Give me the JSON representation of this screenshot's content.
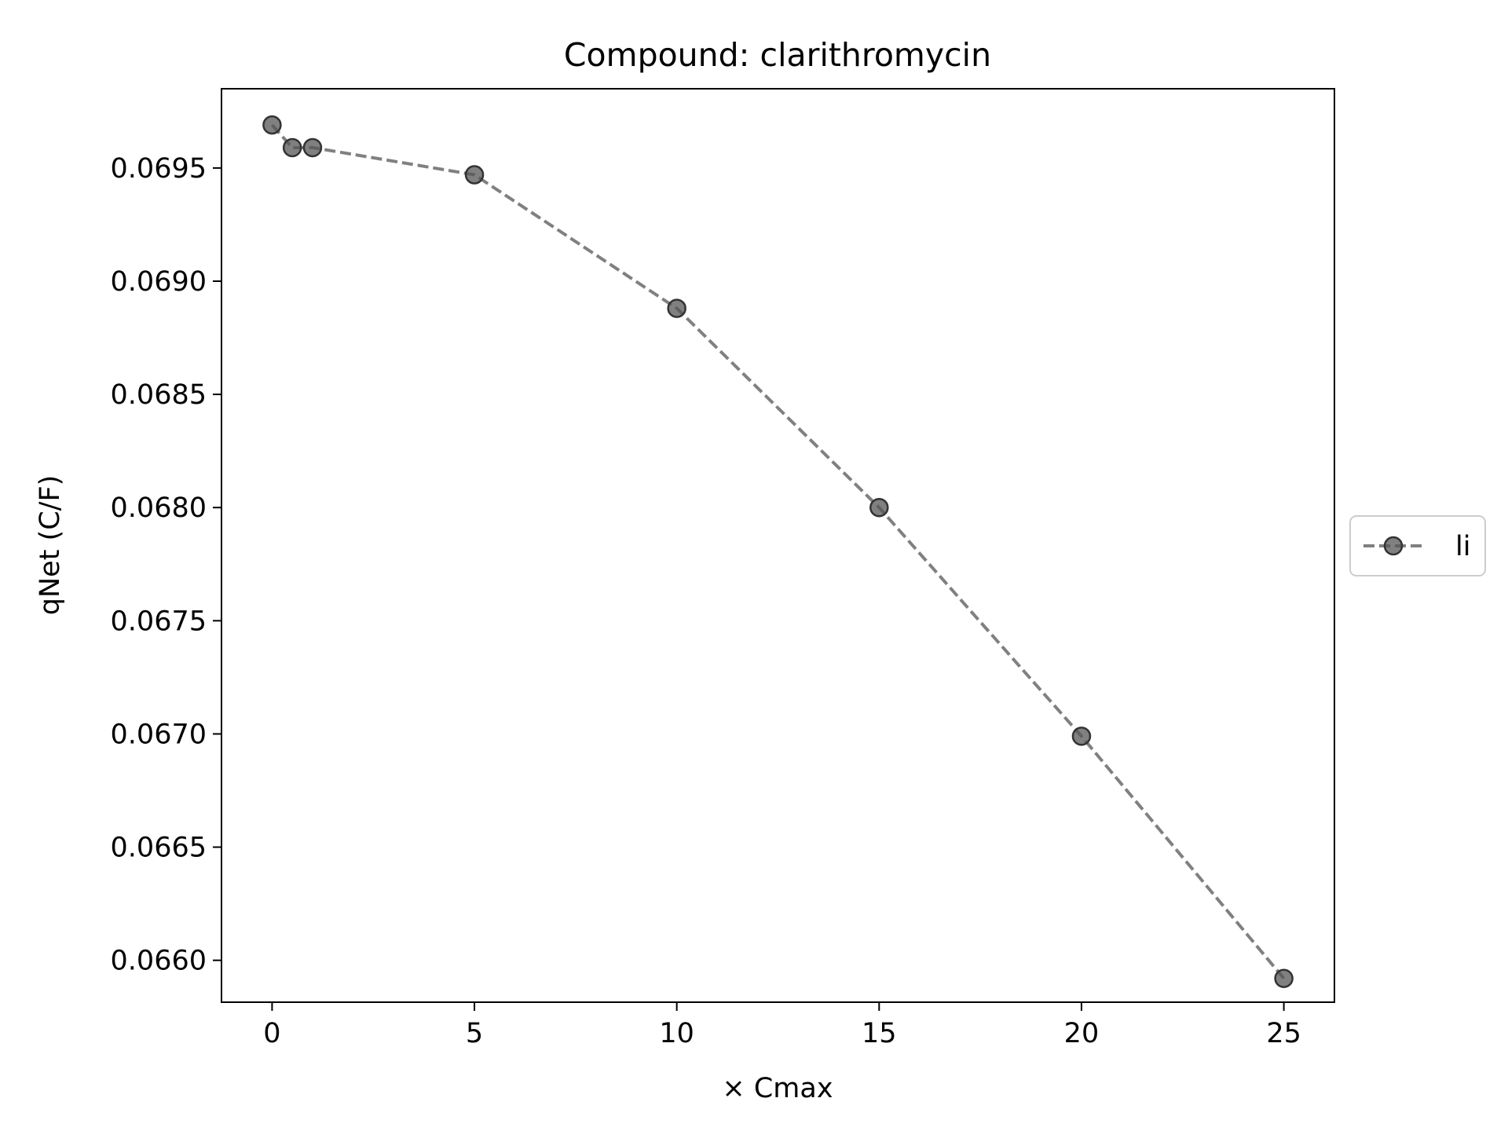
{
  "chart_data": {
    "type": "line",
    "title": "Compound: clarithromycin",
    "xlabel": "× Cmax",
    "ylabel": "qNet (C/F)",
    "xlim": [
      -1.25,
      26.25
    ],
    "ylim": [
      0.065815,
      0.06985
    ],
    "x_ticks": [
      0,
      5,
      10,
      15,
      20,
      25
    ],
    "y_ticks": [
      0.066,
      0.0665,
      0.067,
      0.0675,
      0.068,
      0.0685,
      0.069,
      0.0695
    ],
    "x_tick_labels": [
      "0",
      "5",
      "10",
      "15",
      "20",
      "25"
    ],
    "y_tick_labels": [
      "0.0660",
      "0.0665",
      "0.0670",
      "0.0675",
      "0.0680",
      "0.0685",
      "0.0690",
      "0.0695"
    ],
    "grid": false,
    "legend_position": "center right, outside plot",
    "series": [
      {
        "name": "li",
        "color": "#555555",
        "line_style": "dashed",
        "marker": "circle",
        "x": [
          0,
          0.5,
          1,
          5,
          10,
          15,
          20,
          25
        ],
        "y": [
          0.06969,
          0.06959,
          0.06959,
          0.06947,
          0.06888,
          0.068,
          0.06699,
          0.06592
        ]
      }
    ]
  }
}
